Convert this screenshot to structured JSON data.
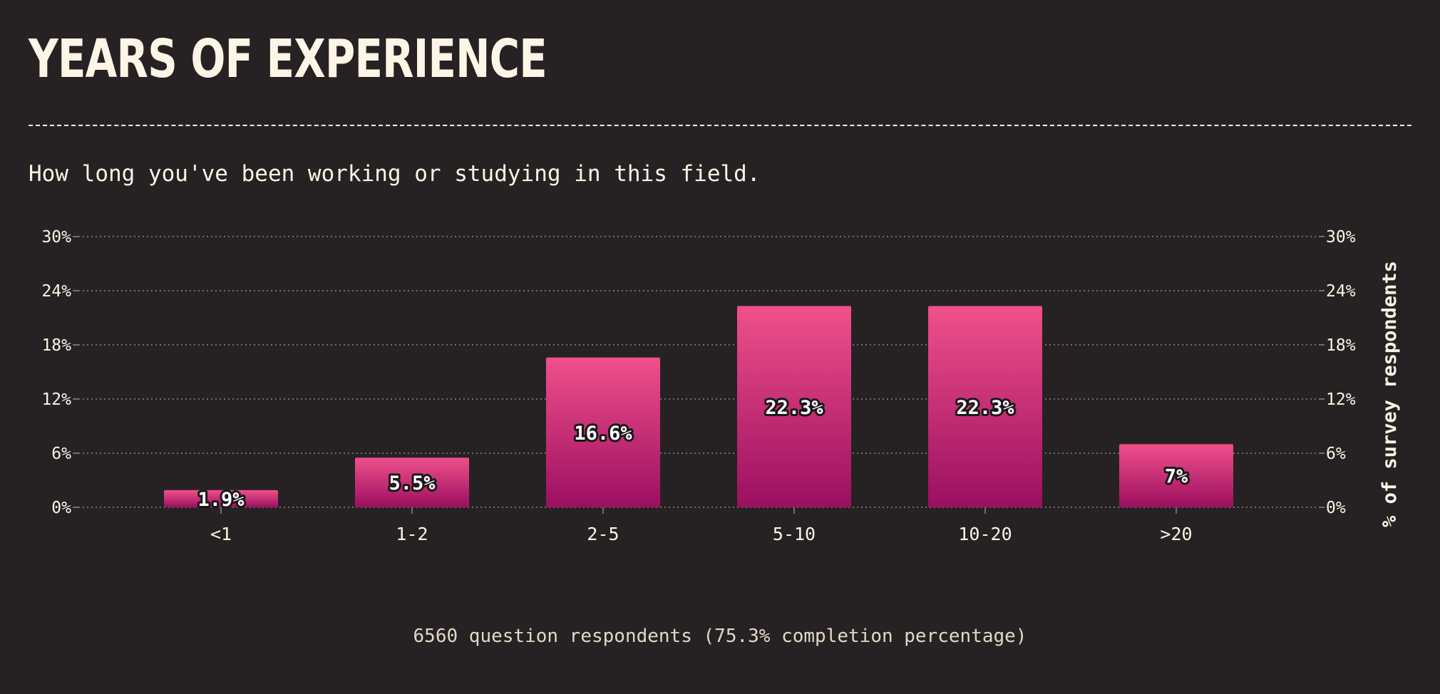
{
  "title": "YEARS OF EXPERIENCE",
  "subtitle": "How long you've been working or studying in this field.",
  "footer": "6560 question respondents (75.3% completion percentage)",
  "colors": {
    "background": "#262223",
    "text": "#fdf5e6",
    "bar_top": "#f0508b",
    "bar_bottom": "#9b0f60",
    "grid": "#8a8587"
  },
  "chart_data": {
    "type": "bar",
    "categories": [
      "<1",
      "1-2",
      "2-5",
      "5-10",
      "10-20",
      ">20"
    ],
    "values": [
      1.9,
      5.5,
      16.6,
      22.3,
      22.3,
      7
    ],
    "value_labels": [
      "1.9%",
      "5.5%",
      "16.6%",
      "22.3%",
      "22.3%",
      "7%"
    ],
    "ylabel": "% of survey respondents",
    "ylim": [
      0,
      30
    ],
    "yticks": [
      0,
      6,
      12,
      18,
      24,
      30
    ],
    "ytick_labels": [
      "0%",
      "6%",
      "12%",
      "18%",
      "24%",
      "30%"
    ],
    "grid": true,
    "y_axis_sides": "both"
  }
}
